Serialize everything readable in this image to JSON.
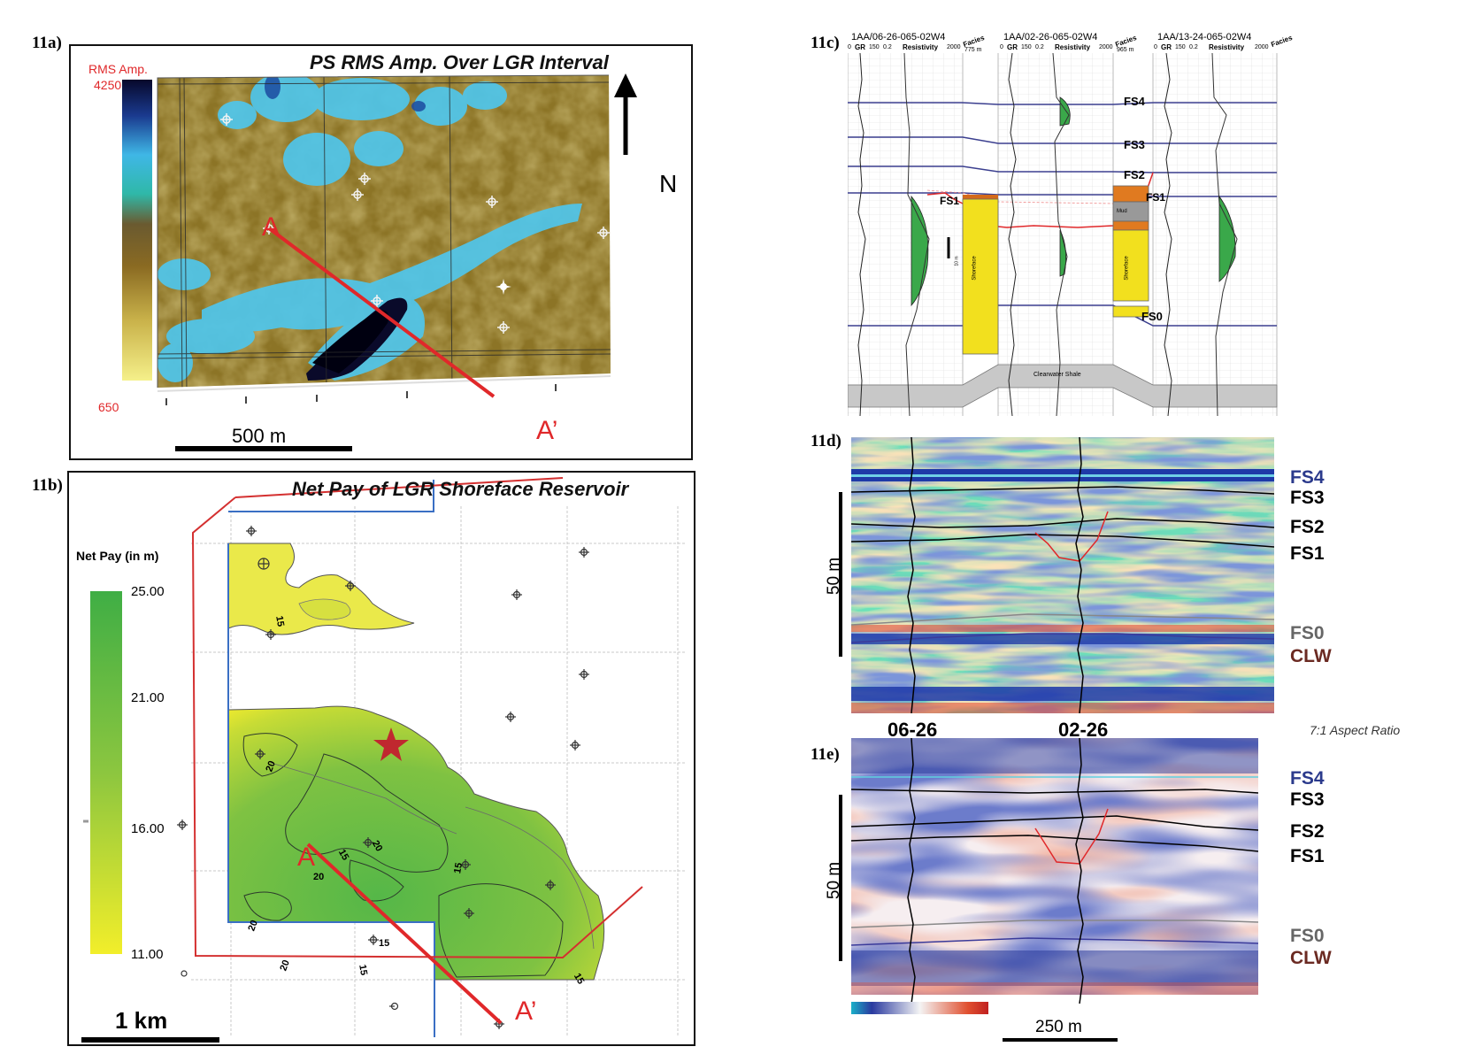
{
  "panel_a": {
    "label": "11a)",
    "title": "PS RMS Amp. Over LGR Interval",
    "colorbar_title": "RMS Amp.",
    "colorbar_max": "4250",
    "colorbar_min": "650",
    "north": "N",
    "point_a": "A",
    "point_a_prime": "A’",
    "scale": "500 m"
  },
  "panel_b": {
    "label": "11b)",
    "title": "Net Pay of LGR Shoreface Reservoir",
    "colorbar_title": "Net Pay (in m)",
    "ticks": [
      "25.00",
      "21.00",
      "16.00",
      "11.00"
    ],
    "contours": [
      "15",
      "20",
      "20",
      "15",
      "20",
      "15",
      "20",
      "20",
      "15",
      "15",
      "15"
    ],
    "point_a": "A",
    "point_a_prime": "A’",
    "scale": "1 km"
  },
  "panel_c": {
    "label": "11c)",
    "wells": [
      {
        "name": "1AA/06-26-065-02W4",
        "gr": "GR",
        "gr_min": "0",
        "gr_max": "150",
        "res": "Resistivity",
        "res_min": "0.2",
        "res_max": "2000",
        "facies": "Facies",
        "dist": "775 m"
      },
      {
        "name": "1AA/02-26-065-02W4",
        "gr": "GR",
        "gr_min": "0",
        "gr_max": "150",
        "res": "Resistivity",
        "res_min": "0.2",
        "res_max": "2000",
        "facies": "Facies",
        "dist": "965 m"
      },
      {
        "name": "1AA/13-24-065-02W4",
        "gr": "GR",
        "gr_min": "0",
        "gr_max": "150",
        "res": "Resistivity",
        "res_min": "0.2",
        "res_max": "2000",
        "facies": "Facies"
      }
    ],
    "surfaces": [
      "FS4",
      "FS3",
      "FS2",
      "FS1",
      "FS1",
      "FS0"
    ],
    "clearwater": "Clearwater Shale",
    "facies_a": "Shoreface",
    "facies_b": "Mud",
    "scale": "10 m"
  },
  "panel_d": {
    "label": "11d)",
    "horizons": [
      {
        "name": "FS4",
        "color": "#2b3a8c"
      },
      {
        "name": "FS3",
        "color": "#000000"
      },
      {
        "name": "FS2",
        "color": "#000000"
      },
      {
        "name": "FS1",
        "color": "#000000"
      },
      {
        "name": "FS0",
        "color": "#666666"
      },
      {
        "name": "CLW",
        "color": "#6b2a22"
      }
    ],
    "scale": "50 m"
  },
  "panel_e": {
    "label": "11e)",
    "well_a": "06-26",
    "well_b": "02-26",
    "aspect": "7:1 Aspect Ratio",
    "horizons": [
      {
        "name": "FS4",
        "color": "#2b3a8c"
      },
      {
        "name": "FS3",
        "color": "#000000"
      },
      {
        "name": "FS2",
        "color": "#000000"
      },
      {
        "name": "FS1",
        "color": "#000000"
      },
      {
        "name": "FS0",
        "color": "#666666"
      },
      {
        "name": "CLW",
        "color": "#6b2a22"
      }
    ],
    "scale": "50 m",
    "hscale": "250 m"
  }
}
